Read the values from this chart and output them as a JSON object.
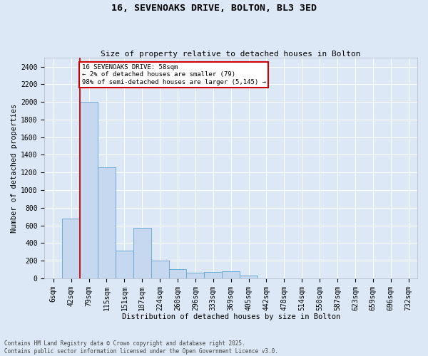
{
  "title1": "16, SEVENOAKS DRIVE, BOLTON, BL3 3ED",
  "title2": "Size of property relative to detached houses in Bolton",
  "xlabel": "Distribution of detached houses by size in Bolton",
  "ylabel": "Number of detached properties",
  "bar_color": "#c5d8ef",
  "bar_edge_color": "#6faad4",
  "background_color": "#dce8f5",
  "fig_background_color": "#dce8f5",
  "grid_color": "#ffffff",
  "categories": [
    "6sqm",
    "42sqm",
    "79sqm",
    "115sqm",
    "151sqm",
    "187sqm",
    "224sqm",
    "260sqm",
    "296sqm",
    "333sqm",
    "369sqm",
    "405sqm",
    "442sqm",
    "478sqm",
    "514sqm",
    "550sqm",
    "587sqm",
    "623sqm",
    "659sqm",
    "696sqm",
    "732sqm"
  ],
  "values": [
    0,
    680,
    2000,
    1260,
    310,
    570,
    200,
    100,
    60,
    70,
    80,
    30,
    0,
    0,
    0,
    0,
    0,
    0,
    0,
    0,
    0
  ],
  "ylim": [
    0,
    2500
  ],
  "yticks": [
    0,
    200,
    400,
    600,
    800,
    1000,
    1200,
    1400,
    1600,
    1800,
    2000,
    2200,
    2400
  ],
  "red_line_x": 1.5,
  "annotation_text": "16 SEVENOAKS DRIVE: 58sqm\n← 2% of detached houses are smaller (79)\n98% of semi-detached houses are larger (5,145) →",
  "annotation_box_color": "#ffffff",
  "annotation_box_edge": "#cc0000",
  "footer": "Contains HM Land Registry data © Crown copyright and database right 2025.\nContains public sector information licensed under the Open Government Licence v3.0.",
  "title_fontsize": 9.5,
  "subtitle_fontsize": 8,
  "tick_fontsize": 7,
  "label_fontsize": 7.5,
  "annotation_fontsize": 6.5,
  "footer_fontsize": 5.5
}
